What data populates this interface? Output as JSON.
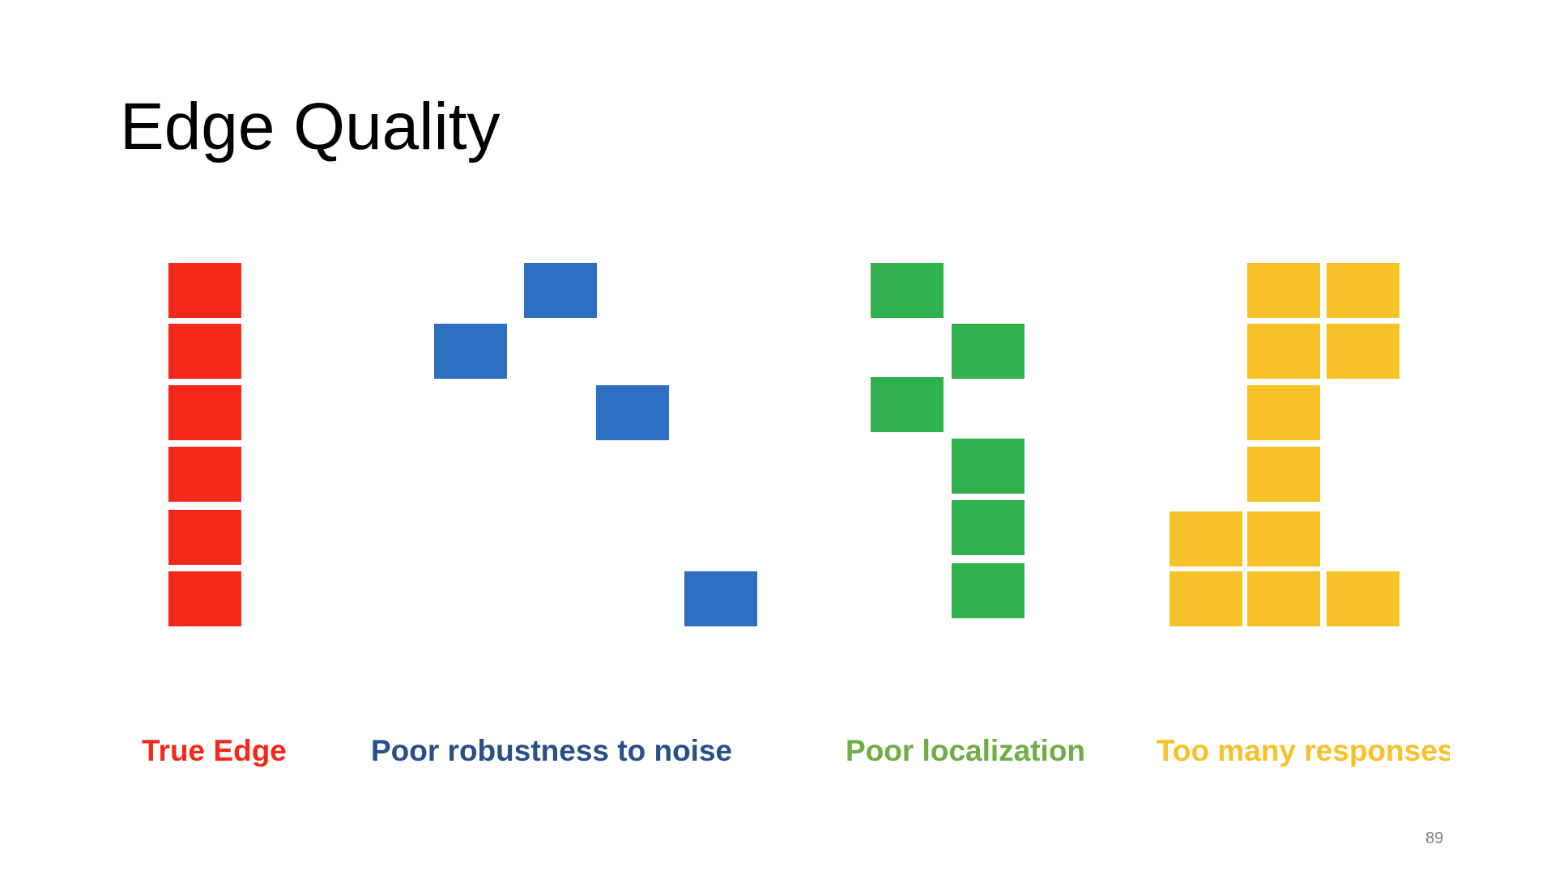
{
  "slide": {
    "title": "Edge Quality",
    "page_number": "89"
  },
  "panels": [
    {
      "id": "true-edge",
      "label": "True Edge",
      "color": "#f42819"
    },
    {
      "id": "poor-robustness",
      "label": "Poor robustness to noise",
      "color": "#284f88"
    },
    {
      "id": "poor-localization",
      "label": "Poor localization",
      "color": "#70ad47"
    },
    {
      "id": "too-many-responses",
      "label": "Too many responses",
      "color": "#f7c227"
    }
  ],
  "colors": {
    "red": "#f42819",
    "blue": "#2e6fc2",
    "green": "#31b050",
    "yellow": "#f7c227"
  }
}
